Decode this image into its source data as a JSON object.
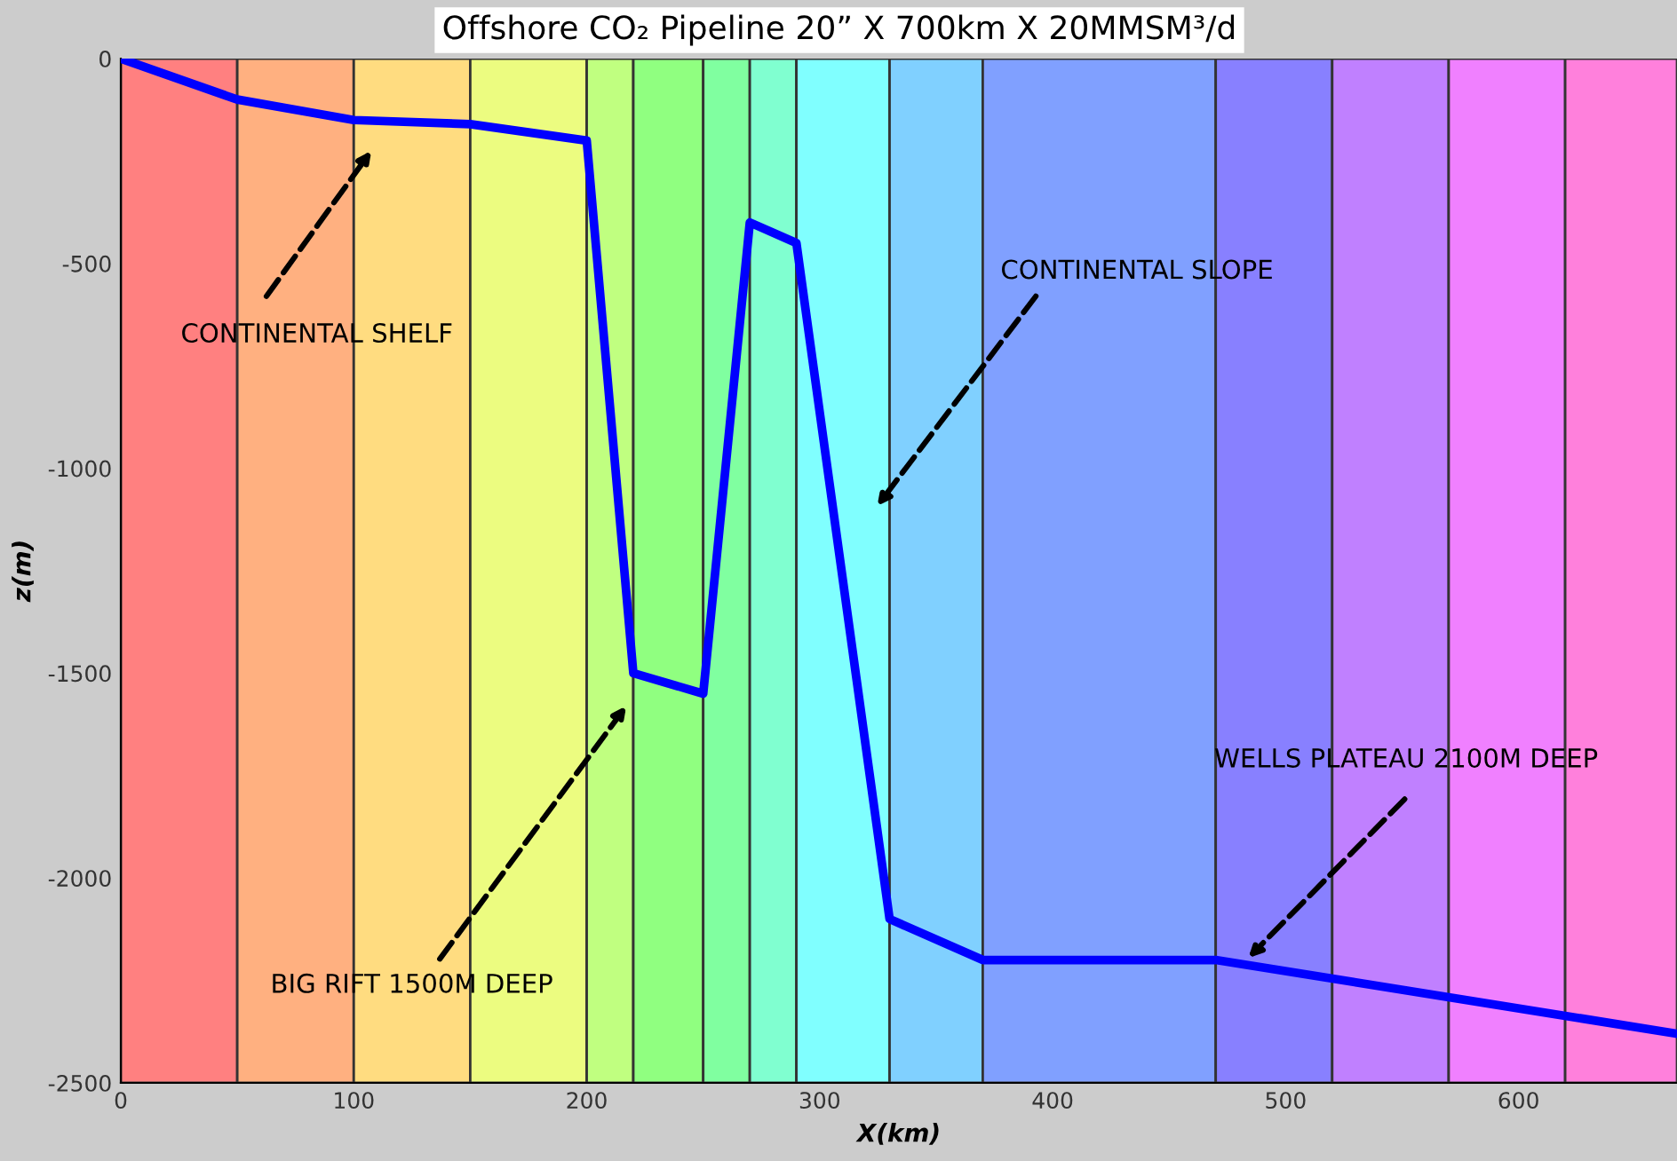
{
  "chart_data": {
    "type": "line",
    "title": "Offshore CO₂ Pipeline 20” X 700km X 20MMSM³/d",
    "xlabel": "X(km)",
    "ylabel": "z(m)",
    "x": [
      0,
      50,
      100,
      150,
      200,
      220,
      250,
      270,
      290,
      330,
      370,
      470,
      668
    ],
    "series": [
      {
        "color": "#0000ff",
        "values": [
          0,
          -100,
          -150,
          -160,
          -200,
          -1500,
          -1550,
          -400,
          -450,
          -2100,
          -2200,
          -2200,
          -2380
        ]
      }
    ],
    "xlim": [
      0,
      668
    ],
    "ylim": [
      -2500,
      0
    ],
    "xticks": [
      0,
      100,
      200,
      300,
      400,
      500,
      600
    ],
    "yticks": [
      -2500,
      -2000,
      -1500,
      -1000,
      -500,
      0
    ],
    "grid": false,
    "marker": "none",
    "line_style": "solid",
    "bands": [
      {
        "axis": "x",
        "from": 0,
        "to": 50,
        "color": "#ff8080"
      },
      {
        "axis": "x",
        "from": 50,
        "to": 100,
        "color": "#ffb080"
      },
      {
        "axis": "x",
        "from": 100,
        "to": 150,
        "color": "#ffdc80"
      },
      {
        "axis": "x",
        "from": 150,
        "to": 200,
        "color": "#ecfc80"
      },
      {
        "axis": "x",
        "from": 200,
        "to": 220,
        "color": "#c0ff80"
      },
      {
        "axis": "x",
        "from": 220,
        "to": 250,
        "color": "#90ff80"
      },
      {
        "axis": "x",
        "from": 250,
        "to": 270,
        "color": "#80ffa0"
      },
      {
        "axis": "x",
        "from": 270,
        "to": 290,
        "color": "#80ffd0"
      },
      {
        "axis": "x",
        "from": 290,
        "to": 330,
        "color": "#80ffff"
      },
      {
        "axis": "x",
        "from": 330,
        "to": 370,
        "color": "#80d0ff"
      },
      {
        "axis": "x",
        "from": 370,
        "to": 470,
        "color": "#80a0ff"
      },
      {
        "axis": "x",
        "from": 470,
        "to": 520,
        "color": "#8880ff"
      },
      {
        "axis": "x",
        "from": 520,
        "to": 570,
        "color": "#c080ff"
      },
      {
        "axis": "x",
        "from": 570,
        "to": 620,
        "color": "#f080ff"
      },
      {
        "axis": "x",
        "from": 620,
        "to": 668,
        "color": "#ff80dc"
      }
    ],
    "annotations": [
      "CONTINENTAL SHELF",
      "CONTINENTAL SLOPE",
      {
        "text": "BIG RIFT 1500M DEEP",
        "x": 217,
        "y": -1580
      },
      {
        "text": "WELLS PLATEAU 2100M DEEP",
        "x": 484,
        "y": -2195
      }
    ]
  }
}
